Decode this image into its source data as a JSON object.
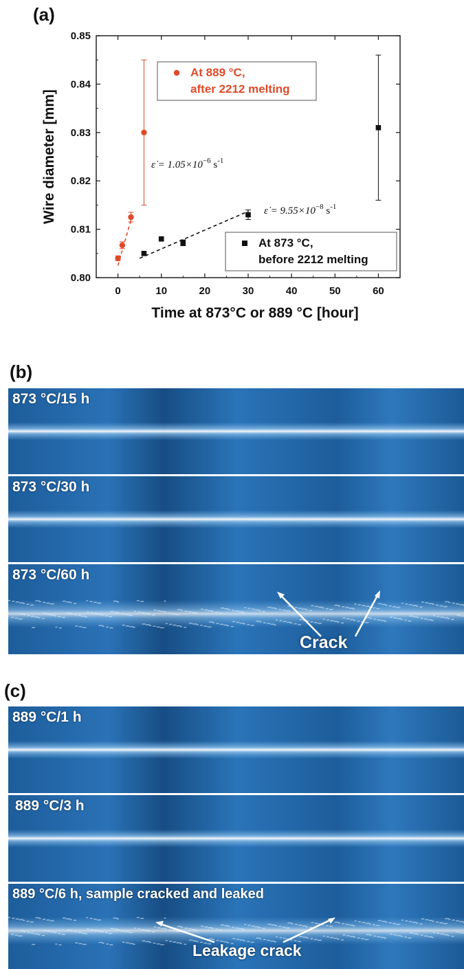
{
  "panels": {
    "a": "(a)",
    "b": "(b)",
    "c": "(c)"
  },
  "chart_data": {
    "type": "scatter",
    "title": "",
    "xlabel": "Time at 873°C or 889 °C [hour]",
    "ylabel": "Wire diameter [mm]",
    "xlim": [
      -5,
      65
    ],
    "ylim": [
      0.8,
      0.85
    ],
    "xticks": [
      0,
      10,
      20,
      30,
      40,
      50,
      60
    ],
    "xtick_labels": [
      "0",
      "10",
      "20",
      "30",
      "40",
      "50",
      "60"
    ],
    "yticks": [
      0.8,
      0.81,
      0.82,
      0.83,
      0.84,
      0.85
    ],
    "ytick_labels": [
      "0.80",
      "0.81",
      "0.82",
      "0.83",
      "0.84",
      "0.85"
    ],
    "grid": false,
    "series": [
      {
        "name": "At 889 °C, after 2212 melting",
        "legend_lines": [
          "At 889 °C,",
          "after 2212 melting"
        ],
        "color": "#e04a2a",
        "marker": "circle",
        "points": [
          {
            "x": 0,
            "y": 0.804,
            "err": 0.0005
          },
          {
            "x": 1,
            "y": 0.8067,
            "err": 0.0007
          },
          {
            "x": 3,
            "y": 0.8125,
            "err": 0.001
          },
          {
            "x": 6,
            "y": 0.83,
            "err": 0.015
          }
        ],
        "fit_line": {
          "x": [
            0,
            3.5
          ],
          "y": [
            0.8025,
            0.8135
          ]
        },
        "rate_label": {
          "prefix": "ε̇ = 1.05×10",
          "exp": "−6",
          "unit": " s",
          "unit_exp": "-1"
        }
      },
      {
        "name": "At 873 °C, before 2212 melting",
        "legend_lines": [
          "At 873 °C,",
          "before 2212 melting"
        ],
        "color": "#111111",
        "marker": "square",
        "points": [
          {
            "x": 6,
            "y": 0.805,
            "err": 0
          },
          {
            "x": 10,
            "y": 0.808,
            "err": 0
          },
          {
            "x": 15,
            "y": 0.8072,
            "err": 0.0006
          },
          {
            "x": 30,
            "y": 0.813,
            "err": 0.001
          },
          {
            "x": 60,
            "y": 0.831,
            "err": 0.015
          }
        ],
        "fit_line": {
          "x": [
            5,
            30
          ],
          "y": [
            0.804,
            0.8137
          ]
        },
        "rate_label": {
          "prefix": "ε̇ = 9.55×10",
          "exp": "−8",
          "unit": " s",
          "unit_exp": "-1"
        }
      }
    ]
  },
  "photos_b": [
    {
      "label": "873 °C/15 h"
    },
    {
      "label": "873 °C/30 h"
    },
    {
      "label": "873 °C/60 h",
      "annotation": "Crack"
    }
  ],
  "photos_c": [
    {
      "label": "889 °C/1 h"
    },
    {
      "label": "889 °C/3 h"
    },
    {
      "label": "889 °C/6 h, sample cracked and leaked",
      "annotation": "Leakage crack"
    }
  ],
  "colors": {
    "photo_bg": "#1e5e9c",
    "wire_highlight": "#ffffff",
    "red_series": "#e04a2a",
    "black_series": "#111111"
  }
}
